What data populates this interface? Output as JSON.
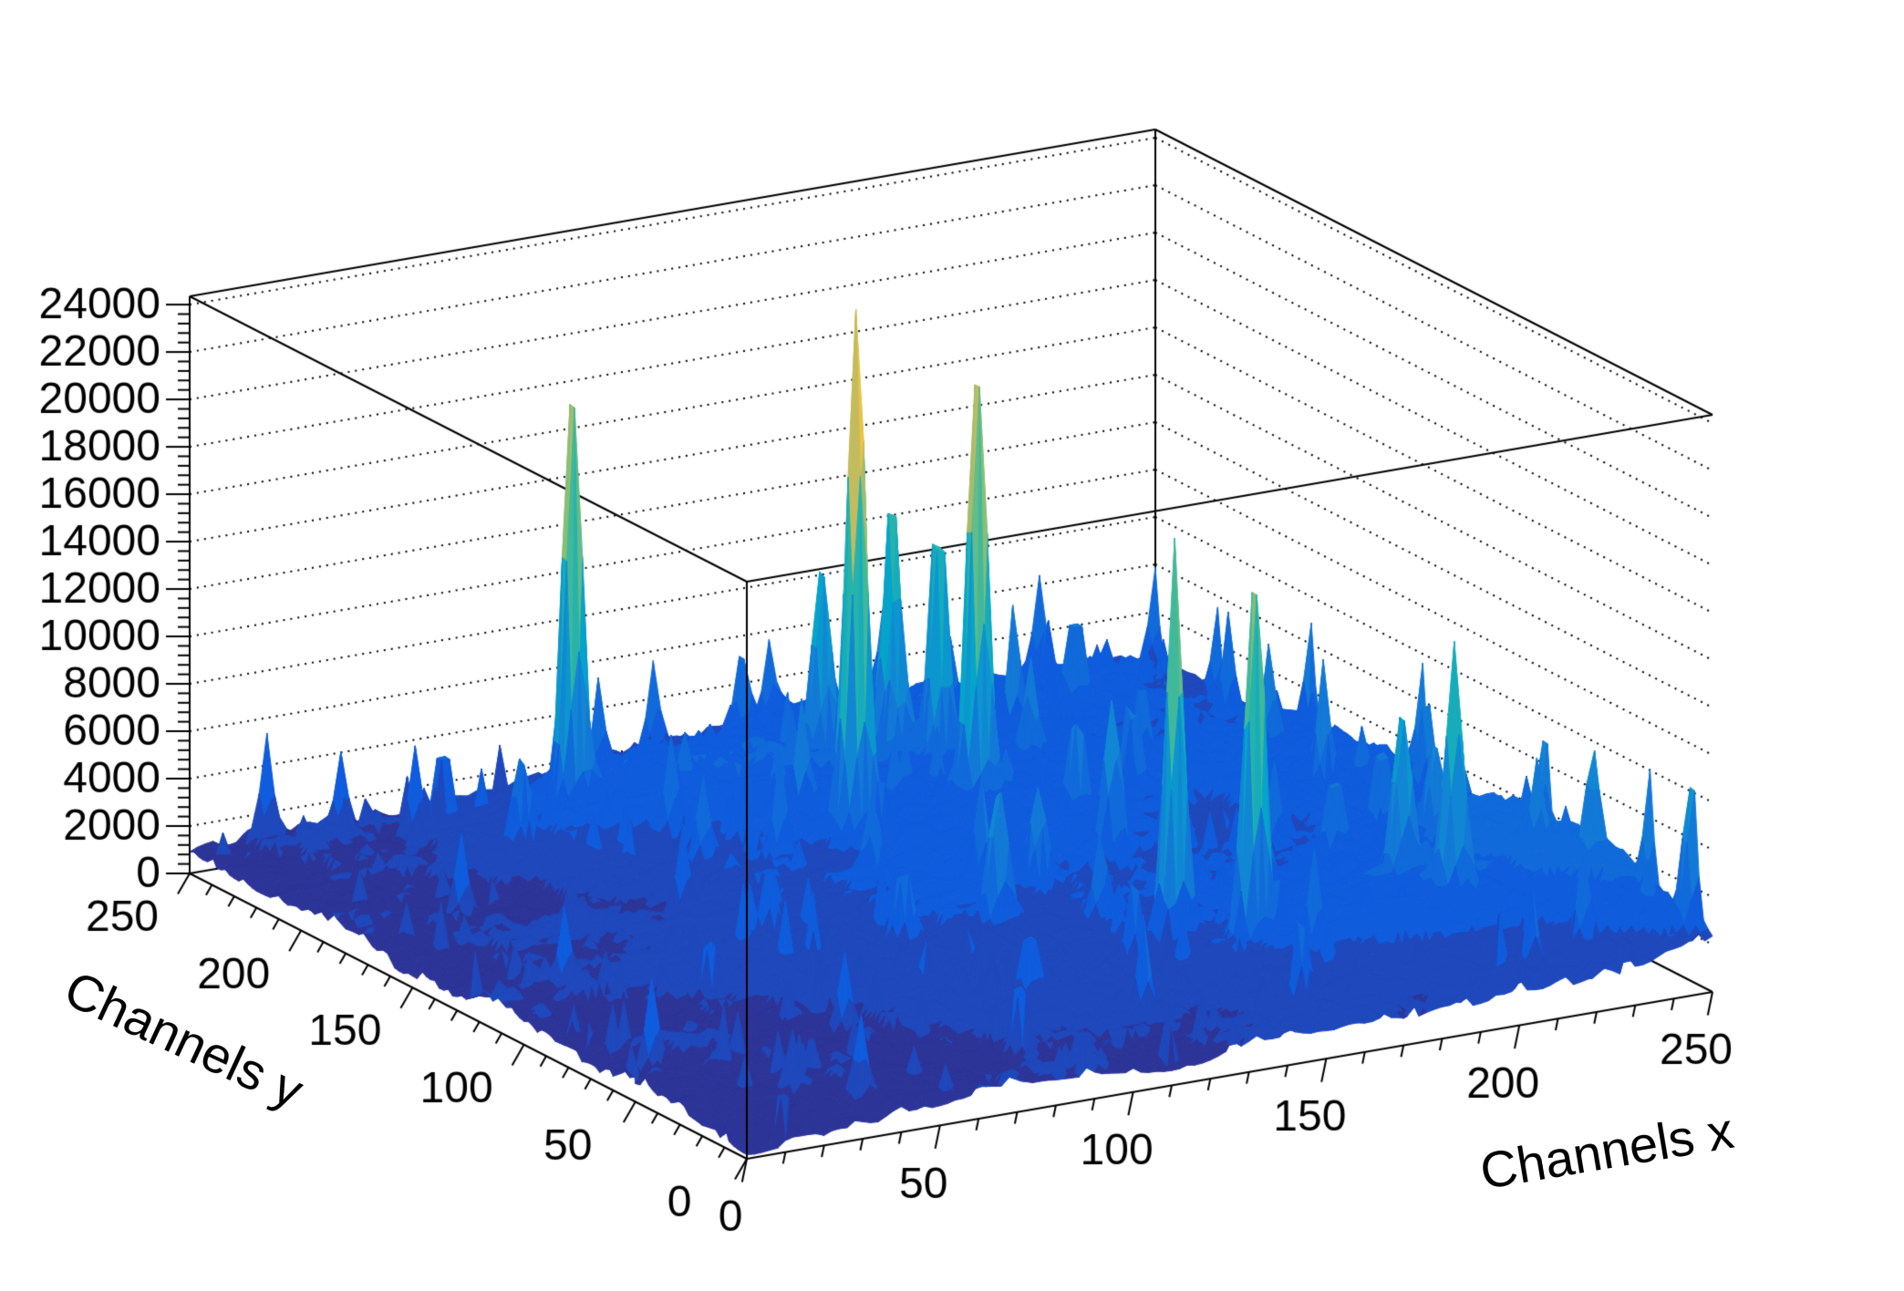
{
  "chart_data": {
    "type": "surface3d",
    "title": "",
    "xlabel": "Channels x",
    "ylabel": "Channels y",
    "zlabel": "",
    "x_range": [
      0,
      250
    ],
    "y_range": [
      0,
      250
    ],
    "z_range": [
      0,
      24350
    ],
    "x_ticks": [
      0,
      50,
      100,
      150,
      200,
      250
    ],
    "y_ticks": [
      0,
      50,
      100,
      150,
      200,
      250
    ],
    "z_ticks": [
      0,
      2000,
      4000,
      6000,
      8000,
      10000,
      12000,
      14000,
      16000,
      18000,
      20000,
      22000,
      24000
    ],
    "x_minor_step": 10,
    "y_minor_step": 10,
    "z_minor_step": 400,
    "grid": "dotted horizontal lines on back walls at each z major tick",
    "legend": "none",
    "background": "#ffffff",
    "frame_color": "#000000",
    "z_frame_max": 24350,
    "grid_n": 125,
    "palette_bird": [
      "#352a87",
      "#0f5cdd",
      "#1480d6",
      "#06a4ca",
      "#2eb7a4",
      "#87bf77",
      "#d1bb59",
      "#fec832",
      "#f9fb0e"
    ],
    "color_levels": 20,
    "peaks": [
      [
        124,
        166,
        21800,
        2.2
      ],
      [
        156,
        167,
        19000,
        2.1
      ],
      [
        80,
        217,
        18200,
        2.0
      ],
      [
        150,
        68,
        16500,
        2.0
      ],
      [
        162,
        53,
        16000,
        2.0
      ],
      [
        153,
        200,
        10500,
        2.0
      ],
      [
        161,
        193,
        10800,
        1.9
      ],
      [
        140,
        209,
        7800,
        1.9
      ],
      [
        212,
        50,
        9800,
        2.0
      ],
      [
        206,
        63,
        7200,
        1.9
      ],
      [
        250,
        9,
        6300,
        2.0
      ],
      [
        207,
        95,
        3800,
        1.8
      ],
      [
        226,
        83,
        4000,
        1.8
      ],
      [
        166,
        124,
        6300,
        2.0
      ],
      [
        140,
        112,
        4000,
        2.0
      ],
      [
        120,
        95,
        5600,
        2.0
      ],
      [
        95,
        95,
        3400,
        1.8
      ],
      [
        60,
        205,
        3600,
        1.8
      ]
    ],
    "spikes": [
      [
        20,
        250,
        4200
      ],
      [
        38,
        248,
        3200
      ],
      [
        57,
        235,
        3900
      ],
      [
        30,
        180,
        3200
      ],
      [
        22,
        120,
        2800
      ],
      [
        10,
        60,
        3300
      ],
      [
        40,
        18,
        3000
      ],
      [
        85,
        25,
        3600
      ],
      [
        120,
        30,
        4200
      ],
      [
        155,
        20,
        3400
      ],
      [
        170,
        40,
        3900
      ],
      [
        135,
        60,
        3600
      ],
      [
        105,
        55,
        3100
      ],
      [
        60,
        60,
        2800
      ],
      [
        28,
        28,
        2500
      ],
      [
        45,
        95,
        2600
      ],
      [
        75,
        120,
        3000
      ],
      [
        70,
        150,
        3500
      ],
      [
        90,
        190,
        3700
      ],
      [
        48,
        232,
        3800
      ],
      [
        100,
        240,
        3300
      ],
      [
        120,
        250,
        3500
      ],
      [
        140,
        245,
        3400
      ],
      [
        165,
        235,
        4200
      ],
      [
        150,
        250,
        3200
      ],
      [
        180,
        250,
        3800
      ],
      [
        220,
        250,
        4000
      ],
      [
        250,
        250,
        3800
      ],
      [
        190,
        210,
        3800
      ],
      [
        215,
        225,
        4600
      ],
      [
        240,
        200,
        4100
      ],
      [
        250,
        222,
        3600
      ],
      [
        250,
        180,
        3900
      ],
      [
        250,
        130,
        4400
      ],
      [
        245,
        120,
        4200
      ],
      [
        230,
        140,
        4700
      ],
      [
        232,
        168,
        3800
      ],
      [
        205,
        178,
        3600
      ],
      [
        182,
        188,
        3900
      ],
      [
        195,
        165,
        4300
      ],
      [
        175,
        155,
        4700
      ],
      [
        185,
        130,
        5600
      ],
      [
        200,
        110,
        3700
      ],
      [
        225,
        105,
        4000
      ],
      [
        250,
        75,
        4000
      ],
      [
        238,
        58,
        3400
      ],
      [
        245,
        45,
        3800
      ],
      [
        250,
        28,
        4600
      ],
      [
        228,
        20,
        3200
      ],
      [
        210,
        12,
        3700
      ],
      [
        180,
        80,
        4100
      ],
      [
        118,
        180,
        4500
      ],
      [
        102,
        162,
        4000
      ],
      [
        88,
        172,
        3500
      ],
      [
        110,
        135,
        3300
      ],
      [
        130,
        120,
        3800
      ],
      [
        11,
        3,
        3100
      ],
      [
        166,
        95,
        3600
      ],
      [
        142,
        88,
        3300
      ]
    ],
    "clusters": [
      {
        "x": 150,
        "y": 185,
        "sx": 45,
        "sy": 38,
        "amp": 2400
      },
      {
        "x": 205,
        "y": 60,
        "sx": 40,
        "sy": 30,
        "amp": 2200
      },
      {
        "x": 85,
        "y": 215,
        "sx": 28,
        "sy": 18,
        "amp": 1500
      },
      {
        "x": 125,
        "y": 100,
        "sx": 52,
        "sy": 42,
        "amp": 1200
      },
      {
        "x": 250,
        "y": 60,
        "sx": 18,
        "sy": 60,
        "amp": 1800
      },
      {
        "x": 190,
        "y": 240,
        "sx": 55,
        "sy": 25,
        "amp": 1300
      },
      {
        "x": 240,
        "y": 160,
        "sx": 25,
        "sy": 55,
        "amp": 1400
      }
    ],
    "noise": {
      "base": 320,
      "low_amp": 780,
      "high_amp": 620,
      "micro_threshold": 0.982,
      "micro_amp": 2600
    }
  }
}
